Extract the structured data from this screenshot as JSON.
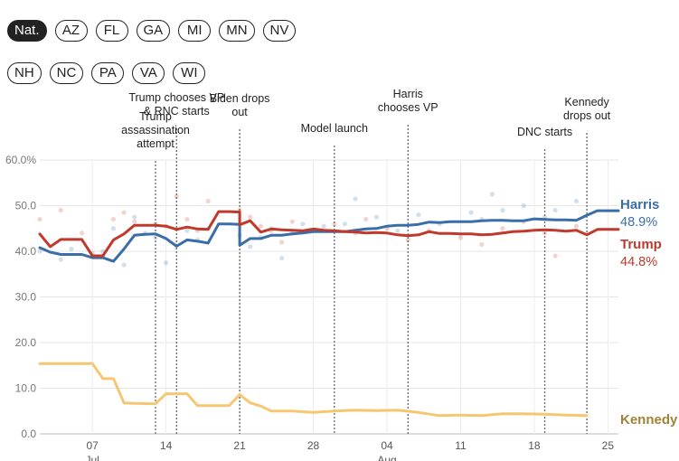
{
  "state_tabs": {
    "row1": [
      "Nat.",
      "AZ",
      "FL",
      "GA",
      "MI",
      "MN",
      "NV"
    ],
    "row2": [
      "NH",
      "NC",
      "PA",
      "VA",
      "WI"
    ],
    "selected": "Nat."
  },
  "chart_data": {
    "type": "line",
    "title": "",
    "xlabel": "",
    "ylabel": "",
    "ylim": [
      0,
      60
    ],
    "yticks": [
      "0.0",
      "10.0",
      "20.0",
      "30.0",
      "40.0",
      "50.0",
      "60.0%"
    ],
    "ytick_values": [
      0,
      10,
      20,
      30,
      40,
      50,
      60
    ],
    "xlim": [
      "2024-07-02",
      "2024-08-26"
    ],
    "xticks": [
      {
        "date": "2024-07-07",
        "label": "07",
        "month": "Jul"
      },
      {
        "date": "2024-07-14",
        "label": "14",
        "month": ""
      },
      {
        "date": "2024-07-21",
        "label": "21",
        "month": ""
      },
      {
        "date": "2024-07-28",
        "label": "28",
        "month": ""
      },
      {
        "date": "2024-08-04",
        "label": "04",
        "month": "Aug"
      },
      {
        "date": "2024-08-11",
        "label": "11",
        "month": ""
      },
      {
        "date": "2024-08-18",
        "label": "18",
        "month": ""
      },
      {
        "date": "2024-08-25",
        "label": "25",
        "month": ""
      }
    ],
    "grid": true,
    "series": [
      {
        "name": "Harris",
        "color": "#3a6ea8",
        "final_label": "48.9%",
        "points": [
          [
            "2024-07-02",
            40.8
          ],
          [
            "2024-07-03",
            39.8
          ],
          [
            "2024-07-04",
            39.3
          ],
          [
            "2024-07-05",
            39.3
          ],
          [
            "2024-07-06",
            39.3
          ],
          [
            "2024-07-07",
            38.6
          ],
          [
            "2024-07-08",
            38.6
          ],
          [
            "2024-07-09",
            37.8
          ],
          [
            "2024-07-10",
            40.5
          ],
          [
            "2024-07-11",
            43.5
          ],
          [
            "2024-07-12",
            43.7
          ],
          [
            "2024-07-13",
            43.8
          ],
          [
            "2024-07-14",
            42.8
          ],
          [
            "2024-07-15",
            41.1
          ],
          [
            "2024-07-16",
            42.5
          ],
          [
            "2024-07-17",
            42.2
          ],
          [
            "2024-07-18",
            41.8
          ],
          [
            "2024-07-19",
            46.0
          ],
          [
            "2024-07-20",
            46.0
          ],
          [
            "2024-07-21",
            45.9
          ],
          [
            "2024-07-21",
            41.3
          ],
          [
            "2024-07-22",
            42.8
          ],
          [
            "2024-07-23",
            42.8
          ],
          [
            "2024-07-24",
            43.5
          ],
          [
            "2024-07-25",
            43.5
          ],
          [
            "2024-07-26",
            43.8
          ],
          [
            "2024-07-27",
            44.0
          ],
          [
            "2024-07-28",
            44.3
          ],
          [
            "2024-07-29",
            44.3
          ],
          [
            "2024-07-30",
            44.3
          ],
          [
            "2024-07-31",
            44.3
          ],
          [
            "2024-08-01",
            44.6
          ],
          [
            "2024-08-02",
            44.9
          ],
          [
            "2024-08-03",
            45.0
          ],
          [
            "2024-08-04",
            45.5
          ],
          [
            "2024-08-05",
            45.7
          ],
          [
            "2024-08-06",
            45.7
          ],
          [
            "2024-08-07",
            45.9
          ],
          [
            "2024-08-08",
            46.4
          ],
          [
            "2024-08-09",
            46.3
          ],
          [
            "2024-08-10",
            46.5
          ],
          [
            "2024-08-11",
            46.5
          ],
          [
            "2024-08-12",
            46.5
          ],
          [
            "2024-08-13",
            46.7
          ],
          [
            "2024-08-14",
            46.8
          ],
          [
            "2024-08-15",
            46.8
          ],
          [
            "2024-08-16",
            46.7
          ],
          [
            "2024-08-17",
            46.7
          ],
          [
            "2024-08-18",
            47.1
          ],
          [
            "2024-08-19",
            47.0
          ],
          [
            "2024-08-20",
            46.9
          ],
          [
            "2024-08-21",
            46.9
          ],
          [
            "2024-08-22",
            46.8
          ],
          [
            "2024-08-23",
            47.9
          ],
          [
            "2024-08-24",
            48.9
          ],
          [
            "2024-08-25",
            48.9
          ],
          [
            "2024-08-26",
            48.9
          ]
        ]
      },
      {
        "name": "Trump",
        "color": "#c0392b",
        "final_label": "44.8%",
        "points": [
          [
            "2024-07-02",
            43.8
          ],
          [
            "2024-07-03",
            41.0
          ],
          [
            "2024-07-04",
            42.6
          ],
          [
            "2024-07-05",
            42.6
          ],
          [
            "2024-07-06",
            42.6
          ],
          [
            "2024-07-07",
            39.0
          ],
          [
            "2024-07-08",
            39.0
          ],
          [
            "2024-07-09",
            42.5
          ],
          [
            "2024-07-10",
            43.8
          ],
          [
            "2024-07-11",
            45.7
          ],
          [
            "2024-07-12",
            45.7
          ],
          [
            "2024-07-13",
            45.7
          ],
          [
            "2024-07-14",
            45.5
          ],
          [
            "2024-07-15",
            44.8
          ],
          [
            "2024-07-16",
            45.3
          ],
          [
            "2024-07-17",
            44.9
          ],
          [
            "2024-07-18",
            44.8
          ],
          [
            "2024-07-19",
            48.7
          ],
          [
            "2024-07-20",
            48.7
          ],
          [
            "2024-07-21",
            48.6
          ],
          [
            "2024-07-21",
            45.8
          ],
          [
            "2024-07-22",
            46.7
          ],
          [
            "2024-07-23",
            44.2
          ],
          [
            "2024-07-24",
            44.9
          ],
          [
            "2024-07-25",
            44.7
          ],
          [
            "2024-07-26",
            44.6
          ],
          [
            "2024-07-27",
            44.5
          ],
          [
            "2024-07-28",
            44.9
          ],
          [
            "2024-07-29",
            44.6
          ],
          [
            "2024-07-30",
            44.5
          ],
          [
            "2024-07-31",
            44.3
          ],
          [
            "2024-08-01",
            44.2
          ],
          [
            "2024-08-02",
            44.0
          ],
          [
            "2024-08-03",
            44.1
          ],
          [
            "2024-08-04",
            44.0
          ],
          [
            "2024-08-05",
            43.6
          ],
          [
            "2024-08-06",
            43.4
          ],
          [
            "2024-08-07",
            43.6
          ],
          [
            "2024-08-08",
            44.3
          ],
          [
            "2024-08-09",
            43.9
          ],
          [
            "2024-08-10",
            43.9
          ],
          [
            "2024-08-11",
            43.8
          ],
          [
            "2024-08-12",
            43.8
          ],
          [
            "2024-08-13",
            43.6
          ],
          [
            "2024-08-14",
            43.7
          ],
          [
            "2024-08-15",
            44.0
          ],
          [
            "2024-08-16",
            44.3
          ],
          [
            "2024-08-17",
            44.4
          ],
          [
            "2024-08-18",
            44.6
          ],
          [
            "2024-08-19",
            44.7
          ],
          [
            "2024-08-20",
            44.6
          ],
          [
            "2024-08-21",
            44.4
          ],
          [
            "2024-08-22",
            44.6
          ],
          [
            "2024-08-23",
            43.6
          ],
          [
            "2024-08-24",
            44.8
          ],
          [
            "2024-08-25",
            44.8
          ],
          [
            "2024-08-26",
            44.8
          ]
        ]
      },
      {
        "name": "Kennedy",
        "color": "#f5c772",
        "label_color": "#a08434",
        "final_label": "",
        "points": [
          [
            "2024-07-02",
            15.4
          ],
          [
            "2024-07-07",
            15.4
          ],
          [
            "2024-07-08",
            12.1
          ],
          [
            "2024-07-09",
            12.1
          ],
          [
            "2024-07-10",
            6.8
          ],
          [
            "2024-07-11",
            6.7
          ],
          [
            "2024-07-13",
            6.6
          ],
          [
            "2024-07-14",
            8.8
          ],
          [
            "2024-07-16",
            8.8
          ],
          [
            "2024-07-17",
            6.2
          ],
          [
            "2024-07-20",
            6.2
          ],
          [
            "2024-07-21",
            8.6
          ],
          [
            "2024-07-22",
            6.8
          ],
          [
            "2024-07-23",
            6.1
          ],
          [
            "2024-07-24",
            5.0
          ],
          [
            "2024-07-26",
            5.0
          ],
          [
            "2024-07-28",
            4.7
          ],
          [
            "2024-07-30",
            5.0
          ],
          [
            "2024-08-01",
            5.2
          ],
          [
            "2024-08-03",
            5.1
          ],
          [
            "2024-08-05",
            5.2
          ],
          [
            "2024-08-07",
            4.7
          ],
          [
            "2024-08-09",
            4.0
          ],
          [
            "2024-08-11",
            4.1
          ],
          [
            "2024-08-13",
            4.0
          ],
          [
            "2024-08-15",
            4.4
          ],
          [
            "2024-08-17",
            4.4
          ],
          [
            "2024-08-19",
            4.3
          ],
          [
            "2024-08-21",
            4.1
          ],
          [
            "2024-08-23",
            4.0
          ]
        ]
      }
    ],
    "polls": {
      "Harris": [
        [
          "2024-07-02",
          40.0
        ],
        [
          "2024-07-04",
          38.2
        ],
        [
          "2024-07-05",
          40.5
        ],
        [
          "2024-07-07",
          39.5
        ],
        [
          "2024-07-08",
          40.0
        ],
        [
          "2024-07-09",
          45.0
        ],
        [
          "2024-07-10",
          37.0
        ],
        [
          "2024-07-11",
          47.5
        ],
        [
          "2024-07-12",
          44.0
        ],
        [
          "2024-07-13",
          43.0
        ],
        [
          "2024-07-14",
          37.5
        ],
        [
          "2024-07-16",
          44.5
        ],
        [
          "2024-07-17",
          42.5
        ],
        [
          "2024-07-18",
          45.0
        ],
        [
          "2024-07-21",
          43.5
        ],
        [
          "2024-07-22",
          41.0
        ],
        [
          "2024-07-23",
          43.0
        ],
        [
          "2024-07-24",
          45.0
        ],
        [
          "2024-07-25",
          38.5
        ],
        [
          "2024-07-26",
          44.0
        ],
        [
          "2024-07-27",
          46.0
        ],
        [
          "2024-07-29",
          45.5
        ],
        [
          "2024-07-31",
          46.0
        ],
        [
          "2024-08-01",
          51.5
        ],
        [
          "2024-08-03",
          47.5
        ],
        [
          "2024-08-05",
          44.5
        ],
        [
          "2024-08-07",
          48.0
        ],
        [
          "2024-08-09",
          46.0
        ],
        [
          "2024-08-12",
          48.5
        ],
        [
          "2024-08-13",
          47.0
        ],
        [
          "2024-08-14",
          52.5
        ],
        [
          "2024-08-15",
          49.0
        ],
        [
          "2024-08-17",
          50.0
        ],
        [
          "2024-08-19",
          47.5
        ],
        [
          "2024-08-20",
          49.0
        ],
        [
          "2024-08-22",
          51.0
        ]
      ],
      "Trump": [
        [
          "2024-07-02",
          47.0
        ],
        [
          "2024-07-04",
          49.0
        ],
        [
          "2024-07-06",
          44.0
        ],
        [
          "2024-07-08",
          39.0
        ],
        [
          "2024-07-09",
          47.0
        ],
        [
          "2024-07-10",
          48.5
        ],
        [
          "2024-07-11",
          46.5
        ],
        [
          "2024-07-13",
          46.0
        ],
        [
          "2024-07-14",
          45.5
        ],
        [
          "2024-07-15",
          52.0
        ],
        [
          "2024-07-16",
          47.0
        ],
        [
          "2024-07-17",
          44.5
        ],
        [
          "2024-07-18",
          51.0
        ],
        [
          "2024-07-21",
          49.0
        ],
        [
          "2024-07-22",
          47.5
        ],
        [
          "2024-07-23",
          45.5
        ],
        [
          "2024-07-24",
          44.5
        ],
        [
          "2024-07-25",
          42.0
        ],
        [
          "2024-07-26",
          46.5
        ],
        [
          "2024-07-28",
          44.5
        ],
        [
          "2024-07-30",
          46.0
        ],
        [
          "2024-08-01",
          44.0
        ],
        [
          "2024-08-02",
          47.0
        ],
        [
          "2024-08-04",
          45.0
        ],
        [
          "2024-08-06",
          42.5
        ],
        [
          "2024-08-08",
          44.5
        ],
        [
          "2024-08-11",
          43.0
        ],
        [
          "2024-08-13",
          41.5
        ],
        [
          "2024-08-15",
          45.0
        ],
        [
          "2024-08-17",
          46.5
        ],
        [
          "2024-08-19",
          44.0
        ],
        [
          "2024-08-20",
          39.0
        ],
        [
          "2024-08-22",
          45.5
        ]
      ]
    },
    "annotations": [
      {
        "date": "2024-07-13",
        "lines": [
          "Trump",
          "assassination",
          "attempt"
        ],
        "top": 133
      },
      {
        "date": "2024-07-15",
        "lines": [
          "Trump chooses VP",
          "& RNC starts"
        ],
        "top": 112
      },
      {
        "date": "2024-07-21",
        "lines": [
          "Biden drops",
          "out"
        ],
        "top": 113
      },
      {
        "date": "2024-07-30",
        "lines": [
          "Model launch"
        ],
        "top": 146
      },
      {
        "date": "2024-08-06",
        "lines": [
          "Harris",
          "chooses VP"
        ],
        "top": 108
      },
      {
        "date": "2024-08-19",
        "lines": [
          "DNC starts"
        ],
        "top": 150
      },
      {
        "date": "2024-08-23",
        "lines": [
          "Kennedy",
          "drops out"
        ],
        "top": 117
      }
    ]
  }
}
